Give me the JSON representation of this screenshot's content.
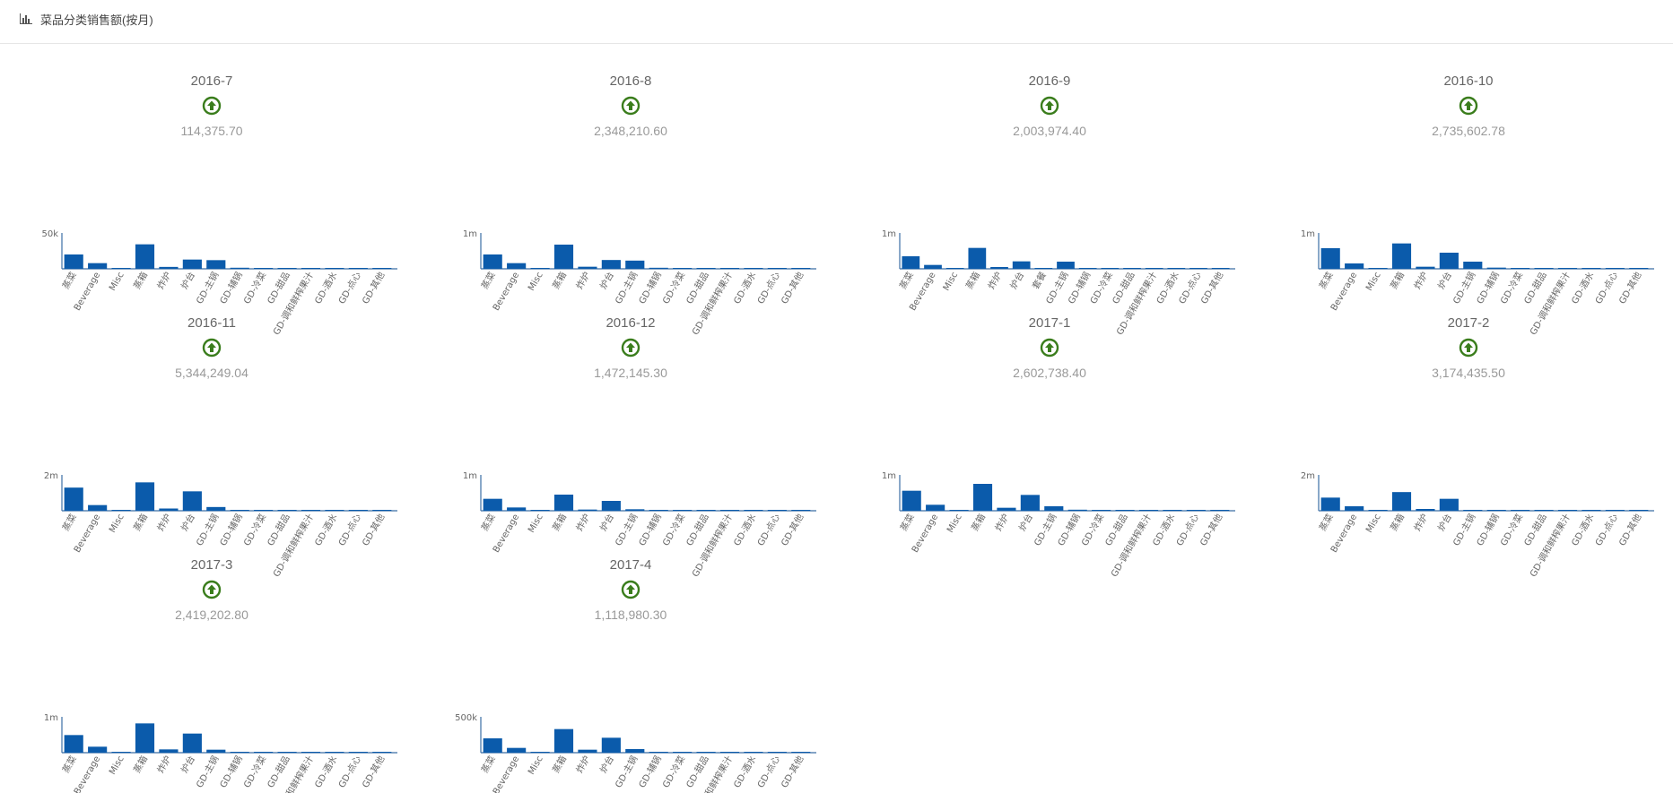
{
  "header": {
    "title": "菜品分类销售额(按月)",
    "icon": "bar-chart-icon"
  },
  "colors": {
    "bar": "#0b5bab",
    "axis": "#3a6ea5",
    "up_icon": "#3a7d1c",
    "text_muted": "#999999"
  },
  "chart_data": [
    {
      "type": "bar",
      "title": "2016-7",
      "total": "114,375.70",
      "trend": "up",
      "ytick": "50k",
      "ylim": [
        0,
        60000
      ],
      "categories": [
        "蒸菜",
        "Beverage",
        "Misc",
        "蒸箱",
        "炸炉",
        "炉台",
        "GD-主锅",
        "GD-辅锅",
        "GD-冷菜",
        "GD-甜品",
        "GD-调和鲜榨果汁",
        "GD-酒水",
        "GD-点心",
        "GD-其他"
      ],
      "values": [
        24000,
        9500,
        1500,
        41000,
        3200,
        15500,
        14500,
        1800,
        500,
        400,
        600,
        500,
        600,
        500
      ]
    },
    {
      "type": "bar",
      "title": "2016-8",
      "total": "2,348,210.60",
      "trend": "up",
      "ytick": "1m",
      "ylim": [
        0,
        1200000
      ],
      "categories": [
        "蒸菜",
        "Beverage",
        "Misc",
        "蒸箱",
        "炸炉",
        "炉台",
        "GD-主锅",
        "GD-辅锅",
        "GD-冷菜",
        "GD-甜品",
        "GD-调和鲜榨果汁",
        "GD-酒水",
        "GD-点心",
        "GD-其他"
      ],
      "values": [
        480000,
        190000,
        25000,
        810000,
        70000,
        295000,
        275000,
        35000,
        10000,
        8000,
        12000,
        9000,
        11000,
        8000
      ]
    },
    {
      "type": "bar",
      "title": "2016-9",
      "total": "2,003,974.40",
      "trend": "up",
      "ytick": "1m",
      "ylim": [
        0,
        1200000
      ],
      "categories": [
        "蒸菜",
        "Beverage",
        "Misc",
        "蒸箱",
        "炸炉",
        "炉台",
        "套餐",
        "GD-主锅",
        "GD-辅锅",
        "GD-冷菜",
        "GD-甜品",
        "GD-调和鲜榨果汁",
        "GD-酒水",
        "GD-点心",
        "GD-其他"
      ],
      "values": [
        420000,
        130000,
        20000,
        700000,
        60000,
        250000,
        15000,
        240000,
        30000,
        10000,
        8000,
        10000,
        8000,
        9000,
        8000
      ]
    },
    {
      "type": "bar",
      "title": "2016-10",
      "total": "2,735,602.78",
      "trend": "up",
      "ytick": "1m",
      "ylim": [
        0,
        1200000
      ],
      "categories": [
        "蒸菜",
        "Beverage",
        "Misc",
        "蒸箱",
        "炸炉",
        "炉台",
        "GD-主锅",
        "GD-辅锅",
        "GD-冷菜",
        "GD-甜品",
        "GD-调和鲜榨果汁",
        "GD-酒水",
        "GD-点心",
        "GD-其他"
      ],
      "values": [
        690000,
        180000,
        25000,
        850000,
        70000,
        540000,
        240000,
        40000,
        12000,
        9000,
        12000,
        9000,
        11000,
        9000
      ]
    },
    {
      "type": "bar",
      "title": "2016-11",
      "total": "5,344,249.04",
      "trend": "up",
      "ytick": "2m",
      "ylim": [
        0,
        2400000
      ],
      "categories": [
        "蒸菜",
        "Beverage",
        "Misc",
        "蒸箱",
        "炸炉",
        "炉台",
        "GD-主锅",
        "GD-辅锅",
        "GD-冷菜",
        "GD-甜品",
        "GD-调和鲜榨果汁",
        "GD-酒水",
        "GD-点心",
        "GD-其他"
      ],
      "values": [
        1550000,
        380000,
        50000,
        1900000,
        150000,
        1300000,
        250000,
        40000,
        20000,
        15000,
        20000,
        15000,
        18000,
        15000
      ]
    },
    {
      "type": "bar",
      "title": "2016-12",
      "total": "1,472,145.30",
      "trend": "up",
      "ytick": "1m",
      "ylim": [
        0,
        1200000
      ],
      "categories": [
        "蒸菜",
        "Beverage",
        "Misc",
        "蒸箱",
        "炸炉",
        "炉台",
        "GD-主锅",
        "GD-辅锅",
        "GD-冷菜",
        "GD-甜品",
        "GD-调和鲜榨果汁",
        "GD-酒水",
        "GD-点心",
        "GD-其他"
      ],
      "values": [
        400000,
        110000,
        15000,
        540000,
        40000,
        330000,
        50000,
        15000,
        7000,
        5000,
        7000,
        5000,
        6000,
        5000
      ]
    },
    {
      "type": "bar",
      "title": "2017-1",
      "total": "2,602,738.40",
      "trend": "up",
      "ytick": "1m",
      "ylim": [
        0,
        1200000
      ],
      "categories": [
        "蒸菜",
        "Beverage",
        "Misc",
        "蒸箱",
        "炸炉",
        "炉台",
        "GD-主锅",
        "GD-辅锅",
        "GD-冷菜",
        "GD-甜品",
        "GD-调和鲜榨果汁",
        "GD-酒水",
        "GD-点心",
        "GD-其他"
      ],
      "values": [
        670000,
        200000,
        25000,
        900000,
        100000,
        530000,
        150000,
        35000,
        12000,
        9000,
        12000,
        9000,
        11000,
        9000
      ]
    },
    {
      "type": "bar",
      "title": "2017-2",
      "total": "3,174,435.50",
      "trend": "up",
      "ytick": "2m",
      "ylim": [
        0,
        2400000
      ],
      "categories": [
        "蒸菜",
        "Beverage",
        "Misc",
        "蒸箱",
        "炸炉",
        "炉台",
        "GD-主锅",
        "GD-辅锅",
        "GD-冷菜",
        "GD-甜品",
        "GD-调和鲜榨果汁",
        "GD-酒水",
        "GD-点心",
        "GD-其他"
      ],
      "values": [
        880000,
        300000,
        40000,
        1250000,
        120000,
        800000,
        50000,
        20000,
        12000,
        9000,
        12000,
        9000,
        11000,
        9000
      ]
    },
    {
      "type": "bar",
      "title": "2017-3",
      "total": "2,419,202.80",
      "trend": "up",
      "ytick": "1m",
      "ylim": [
        0,
        1200000
      ],
      "categories": [
        "蒸菜",
        "Beverage",
        "Misc",
        "蒸箱",
        "炸炉",
        "炉台",
        "GD-主锅",
        "GD-辅锅",
        "GD-冷菜",
        "GD-甜品",
        "GD-调和鲜榨果汁",
        "GD-酒水",
        "GD-点心",
        "GD-其他"
      ],
      "values": [
        590000,
        200000,
        25000,
        980000,
        110000,
        640000,
        100000,
        12000,
        8000,
        6000,
        8000,
        6000,
        7000,
        6000
      ]
    },
    {
      "type": "bar",
      "title": "2017-4",
      "total": "1,118,980.30",
      "trend": "up",
      "ytick": "500k",
      "ylim": [
        0,
        600000
      ],
      "categories": [
        "蒸菜",
        "Beverage",
        "Misc",
        "蒸箱",
        "炸炉",
        "炉台",
        "GD-主锅",
        "GD-辅锅",
        "GD-冷菜",
        "GD-甜品",
        "GD-调和鲜榨果汁",
        "GD-酒水",
        "GD-点心",
        "GD-其他"
      ],
      "values": [
        240000,
        80000,
        10000,
        395000,
        50000,
        250000,
        60000,
        6000,
        4000,
        3000,
        4000,
        3000,
        3500,
        3000
      ]
    }
  ]
}
